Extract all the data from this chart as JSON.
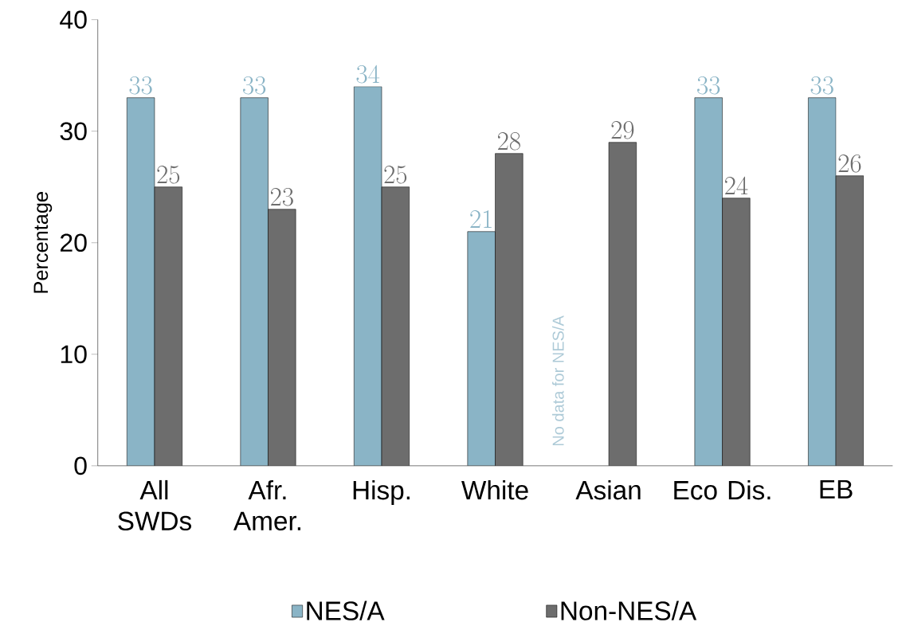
{
  "chart_data": {
    "type": "bar",
    "ylabel": "Percentage",
    "categories": [
      "All SWDs",
      "Afr. Amer.",
      "Hisp.",
      "White",
      "Asian",
      "Eco Dis.",
      "EB"
    ],
    "series": [
      {
        "name": "NES/A",
        "color": "#8ab4c6",
        "values": [
          33,
          33,
          34,
          21,
          null,
          33,
          33
        ]
      },
      {
        "name": "Non-NES/A",
        "color": "#6d6d6d",
        "values": [
          25,
          23,
          25,
          28,
          29,
          24,
          26
        ]
      }
    ],
    "ylim": [
      0,
      40
    ],
    "yticks": [
      0,
      10,
      20,
      30,
      40
    ],
    "grid": false,
    "legend": "bottom",
    "data_labels": true,
    "annotations": [
      "No data for NES/A"
    ]
  }
}
